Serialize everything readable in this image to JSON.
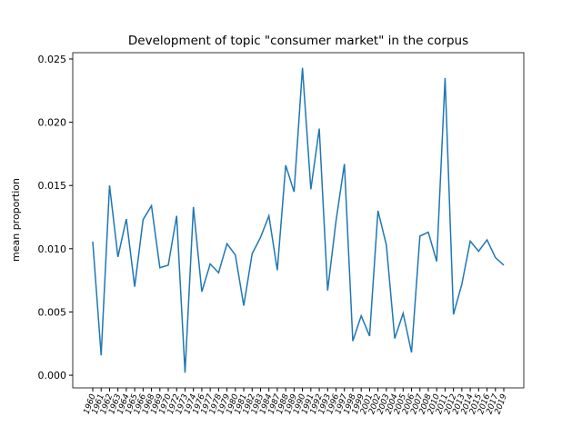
{
  "chart_data": {
    "type": "line",
    "title": "Development of topic \"consumer market\" in the corpus",
    "ylabel": "mean proportion",
    "categories": [
      "1960",
      "1961",
      "1962",
      "1963",
      "1964",
      "1965",
      "1966",
      "1968",
      "1969",
      "1970",
      "1972",
      "1973",
      "1974",
      "1976",
      "1977",
      "1978",
      "1979",
      "1980",
      "1981",
      "1982",
      "1983",
      "1984",
      "1987",
      "1988",
      "1989",
      "1990",
      "1991",
      "1992",
      "1993",
      "1996",
      "1997",
      "1998",
      "1999",
      "2001",
      "2002",
      "2003",
      "2004",
      "2005",
      "2006",
      "2007",
      "2008",
      "2010",
      "2011",
      "2012",
      "2013",
      "2014",
      "2015",
      "2016",
      "2017",
      "2019"
    ],
    "series": [
      {
        "name": "mean proportion",
        "color": "#1f77b4",
        "values": [
          0.01056,
          0.00158,
          0.015,
          0.00935,
          0.01235,
          0.007,
          0.0123,
          0.0134,
          0.0085,
          0.0087,
          0.0126,
          0.0002,
          0.0133,
          0.0066,
          0.0088,
          0.0081,
          0.0104,
          0.0095,
          0.0055,
          0.0096,
          0.0109,
          0.0126,
          0.0083,
          0.0166,
          0.0145,
          0.0243,
          0.0147,
          0.0195,
          0.0067,
          0.0122,
          0.0167,
          0.0027,
          0.0047,
          0.0031,
          0.013,
          0.0103,
          0.0029,
          0.0049,
          0.0018,
          0.011,
          0.0113,
          0.009,
          0.0235,
          0.0048,
          0.0072,
          0.0106,
          0.0098,
          0.0107,
          0.0093,
          0.0087
        ]
      }
    ],
    "ylim": [
      -0.001,
      0.0255
    ],
    "yticks": [
      {
        "value": 0,
        "label": "0.000"
      },
      {
        "value": 0.005,
        "label": "0.005"
      },
      {
        "value": 0.01,
        "label": "0.010"
      },
      {
        "value": 0.015,
        "label": "0.015"
      },
      {
        "value": 0.02,
        "label": "0.020"
      },
      {
        "value": 0.025,
        "label": "0.025"
      }
    ],
    "grid": false
  }
}
